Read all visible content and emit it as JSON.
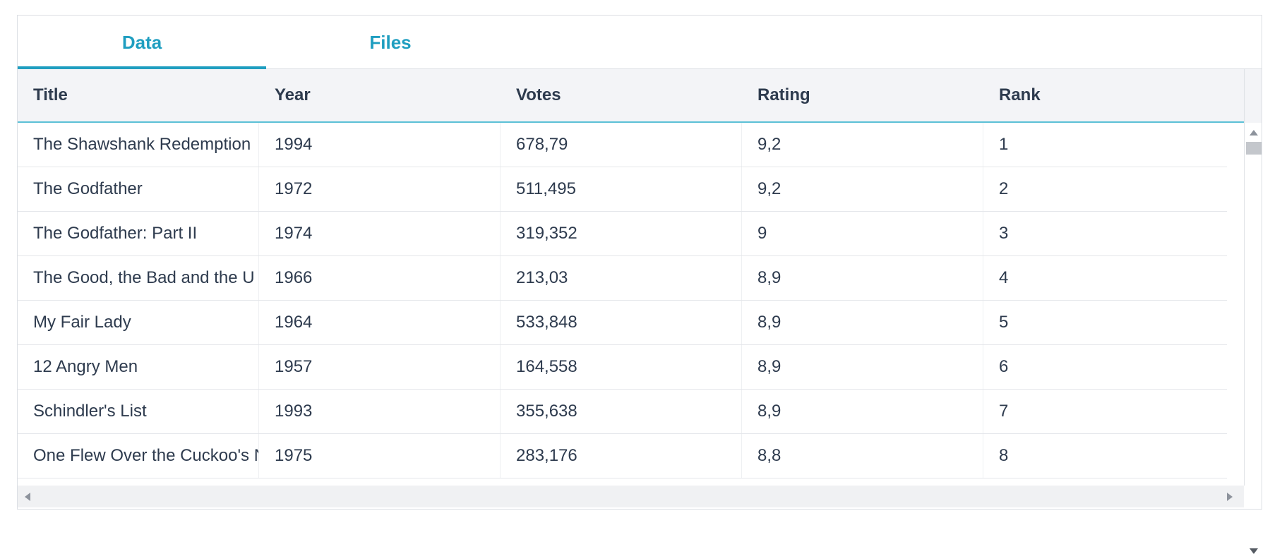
{
  "tabs": [
    {
      "label": "Data",
      "active": true
    },
    {
      "label": "Files",
      "active": false
    }
  ],
  "accent_color": "#1f9ec0",
  "table": {
    "columns": [
      "Title",
      "Year",
      "Votes",
      "Rating",
      "Rank"
    ],
    "rows": [
      [
        "The Shawshank Redemption",
        "1994",
        "678,79",
        "9,2",
        "1"
      ],
      [
        "The Godfather",
        "1972",
        "511,495",
        "9,2",
        "2"
      ],
      [
        "The Godfather: Part II",
        "1974",
        "319,352",
        "9",
        "3"
      ],
      [
        "The Good, the Bad and the U",
        "1966",
        "213,03",
        "8,9",
        "4"
      ],
      [
        "My Fair Lady",
        "1964",
        "533,848",
        "8,9",
        "5"
      ],
      [
        "12 Angry Men",
        "1957",
        "164,558",
        "8,9",
        "6"
      ],
      [
        "Schindler's List",
        "1993",
        "355,638",
        "8,9",
        "7"
      ],
      [
        "One Flew Over the Cuckoo's Nest",
        "1975",
        "283,176",
        "8,8",
        "8"
      ]
    ]
  },
  "icons": {
    "scroll_up": "chevron-up-icon",
    "scroll_down": "chevron-down-icon",
    "scroll_left": "chevron-left-icon",
    "scroll_right": "chevron-right-icon"
  }
}
